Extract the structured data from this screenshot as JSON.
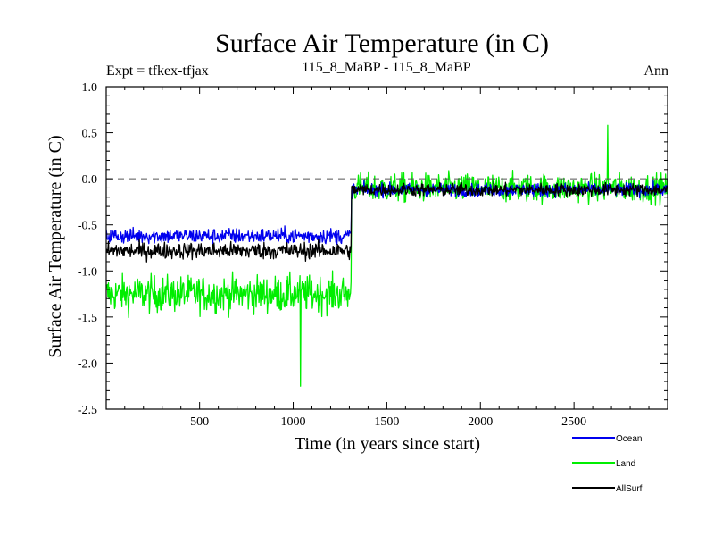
{
  "chart_data": {
    "type": "line",
    "title": "Surface Air Temperature (in C)",
    "subtitle_left": "Expt = tfkex-tfjax",
    "subtitle_center": "115_8_MaBP - 115_8_MaBP",
    "subtitle_right": "Ann",
    "xlabel": "Time (in years since start)",
    "ylabel": "Surface Air Temperature (in C)",
    "xlim": [
      1,
      3000
    ],
    "ylim": [
      -2.5,
      1.0
    ],
    "x_ticks": [
      500,
      1000,
      1500,
      2000,
      2500
    ],
    "x_tick_labels": [
      "500",
      "1000",
      "1500",
      "2000",
      "2500"
    ],
    "y_ticks": [
      -2.5,
      -2.0,
      -1.5,
      -1.0,
      -0.5,
      0.0,
      0.5,
      1.0
    ],
    "y_tick_labels": [
      "-2.5",
      "-2.0",
      "-1.5",
      "-1.0",
      "-0.5",
      "0.0",
      "0.5",
      "1.0"
    ],
    "reference_line": {
      "y": 0.0,
      "style": "dashed"
    },
    "grid": false,
    "legend_position": "bottom-right, outside plot",
    "series": [
      {
        "name": "Land",
        "color": "#00ee00",
        "draw_order": 1,
        "segments": [
          {
            "x_start": 1,
            "x_end": 1310,
            "mean": -1.25,
            "noise_amplitude": 0.28
          },
          {
            "x_start": 1310,
            "x_end": 3000,
            "mean": -0.1,
            "noise_amplitude": 0.22
          }
        ],
        "notable_points": [
          {
            "x": 1040,
            "y": -2.25
          },
          {
            "x": 2680,
            "y": 0.58
          }
        ]
      },
      {
        "name": "Ocean",
        "color": "#0000ee",
        "draw_order": 2,
        "segments": [
          {
            "x_start": 1,
            "x_end": 1310,
            "mean": -0.62,
            "noise_amplitude": 0.12
          },
          {
            "x_start": 1310,
            "x_end": 3000,
            "mean": -0.12,
            "noise_amplitude": 0.1
          }
        ]
      },
      {
        "name": "AllSurf",
        "color": "#000000",
        "draw_order": 3,
        "segments": [
          {
            "x_start": 1,
            "x_end": 1310,
            "mean": -0.78,
            "noise_amplitude": 0.13
          },
          {
            "x_start": 1310,
            "x_end": 3000,
            "mean": -0.12,
            "noise_amplitude": 0.1
          }
        ]
      }
    ],
    "legend": [
      {
        "label": "Ocean",
        "color": "#0000ee"
      },
      {
        "label": "Land",
        "color": "#00ee00"
      },
      {
        "label": "AllSurf",
        "color": "#000000"
      }
    ]
  }
}
